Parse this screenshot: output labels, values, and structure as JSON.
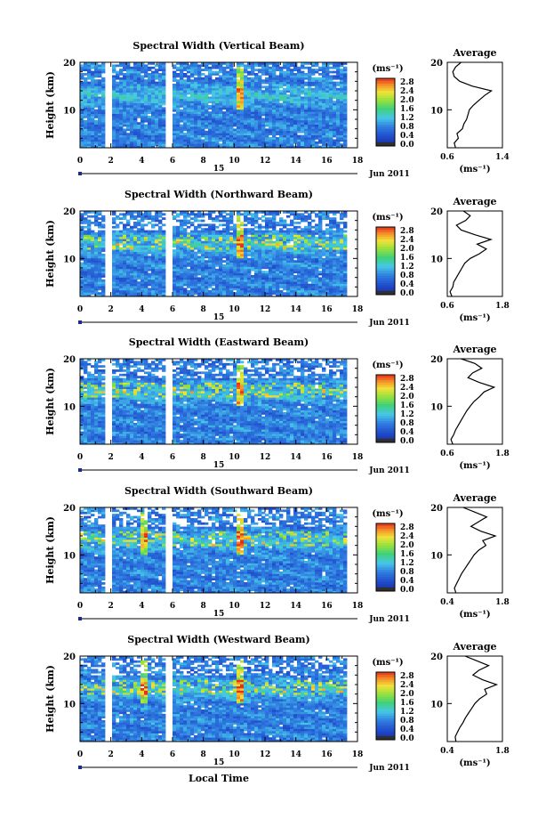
{
  "figure": {
    "date_label": "Jun 2011",
    "day_label": "15",
    "xlabel": "Local Time",
    "ylabel": "Height (km)",
    "unit_label": "(ms⁻¹)",
    "avg_title": "Average",
    "x_ticks": [
      "0",
      "2",
      "4",
      "6",
      "8",
      "10",
      "12",
      "14",
      "16",
      "18"
    ],
    "y_ticks": [
      "10",
      "20"
    ],
    "colorbar_ticks": [
      "0.0",
      "0.4",
      "0.8",
      "1.2",
      "1.6",
      "2.0",
      "2.4",
      "2.8"
    ],
    "colors": {
      "low": "#1a2b8f",
      "mid_low": "#2f7be0",
      "mid": "#46c8e8",
      "mid_high": "#3fd17a",
      "high": "#f1e23a",
      "top": "#e5321e"
    }
  },
  "chart_data": [
    {
      "type": "heatmap",
      "title": "Spectral Width (Vertical Beam)",
      "xlabel": "Local Time",
      "ylabel": "Height (km)",
      "xlim": [
        0,
        18
      ],
      "ylim": [
        2,
        20
      ],
      "data_gaps_hours": [
        [
          1.6,
          2.0
        ],
        [
          5.5,
          5.9
        ]
      ],
      "colorbar": {
        "unit": "(ms⁻¹)",
        "range": [
          0.0,
          2.8
        ]
      },
      "average_profile": {
        "title": "Average",
        "xlabel": "(ms⁻¹)",
        "xlim": [
          0.6,
          1.4
        ],
        "x_ticks": [
          "0.6",
          "1.4"
        ],
        "height_km": [
          2,
          3,
          4,
          5,
          6,
          7,
          8,
          9,
          10,
          11,
          12,
          13,
          14,
          15,
          16,
          17,
          18,
          19,
          20
        ],
        "value": [
          0.72,
          0.7,
          0.76,
          0.74,
          0.82,
          0.84,
          0.88,
          0.9,
          0.92,
          0.98,
          1.06,
          1.14,
          1.24,
          0.96,
          0.78,
          0.7,
          0.68,
          0.72,
          0.8
        ]
      }
    },
    {
      "type": "heatmap",
      "title": "Spectral Width (Northward Beam)",
      "xlabel": "Local Time",
      "ylabel": "Height (km)",
      "xlim": [
        0,
        18
      ],
      "ylim": [
        2,
        20
      ],
      "data_gaps_hours": [
        [
          1.6,
          2.0
        ],
        [
          5.5,
          5.9
        ]
      ],
      "colorbar": {
        "unit": "(ms⁻¹)",
        "range": [
          0.0,
          2.8
        ]
      },
      "average_profile": {
        "title": "Average",
        "xlabel": "(ms⁻¹)",
        "xlim": [
          0.6,
          1.8
        ],
        "x_ticks": [
          "0.6",
          "1.8"
        ],
        "height_km": [
          2,
          3,
          4,
          5,
          6,
          7,
          8,
          9,
          10,
          11,
          12,
          13,
          14,
          15,
          16,
          17,
          18,
          19,
          20
        ],
        "value": [
          0.7,
          0.66,
          0.72,
          0.74,
          0.8,
          0.86,
          0.92,
          0.98,
          1.1,
          1.3,
          1.45,
          1.25,
          1.55,
          1.2,
          0.9,
          0.8,
          1.0,
          1.1,
          0.95
        ]
      }
    },
    {
      "type": "heatmap",
      "title": "Spectral Width (Eastward Beam)",
      "xlabel": "Local Time",
      "ylabel": "Height (km)",
      "xlim": [
        0,
        18
      ],
      "ylim": [
        2,
        20
      ],
      "data_gaps_hours": [
        [
          1.6,
          2.0
        ],
        [
          5.5,
          5.9
        ]
      ],
      "colorbar": {
        "unit": "(ms⁻¹)",
        "range": [
          0.0,
          2.8
        ]
      },
      "average_profile": {
        "title": "Average",
        "xlabel": "(ms⁻¹)",
        "xlim": [
          0.6,
          1.8
        ],
        "x_ticks": [
          "0.6",
          "1.8"
        ],
        "height_km": [
          2,
          3,
          4,
          5,
          6,
          7,
          8,
          9,
          10,
          11,
          12,
          13,
          14,
          15,
          16,
          17,
          18,
          19,
          20
        ],
        "value": [
          0.72,
          0.68,
          0.74,
          0.78,
          0.84,
          0.9,
          0.96,
          1.02,
          1.1,
          1.18,
          1.3,
          1.4,
          1.62,
          1.3,
          1.05,
          1.15,
          1.35,
          1.2,
          0.9
        ]
      }
    },
    {
      "type": "heatmap",
      "title": "Spectral Width (Southward Beam)",
      "xlabel": "Local Time",
      "ylabel": "Height (km)",
      "xlim": [
        0,
        18
      ],
      "ylim": [
        2,
        20
      ],
      "data_gaps_hours": [
        [
          1.6,
          2.0
        ],
        [
          5.5,
          5.9
        ]
      ],
      "colorbar": {
        "unit": "(ms⁻¹)",
        "range": [
          0.0,
          2.8
        ]
      },
      "average_profile": {
        "title": "Average",
        "xlabel": "(ms⁻¹)",
        "xlim": [
          0.4,
          1.8
        ],
        "x_ticks": [
          "0.4",
          "1.8"
        ],
        "height_km": [
          2,
          3,
          4,
          5,
          6,
          7,
          8,
          9,
          10,
          11,
          12,
          13,
          14,
          15,
          16,
          17,
          18,
          19,
          20
        ],
        "value": [
          0.62,
          0.58,
          0.64,
          0.7,
          0.76,
          0.84,
          0.92,
          1.0,
          1.08,
          1.2,
          1.38,
          1.3,
          1.62,
          1.25,
          1.0,
          1.2,
          1.4,
          1.1,
          0.8
        ]
      }
    },
    {
      "type": "heatmap",
      "title": "Spectral Width (Westward Beam)",
      "xlabel": "Local Time",
      "ylabel": "Height (km)",
      "xlim": [
        0,
        18
      ],
      "ylim": [
        2,
        20
      ],
      "data_gaps_hours": [
        [
          1.6,
          2.0
        ],
        [
          5.5,
          5.9
        ]
      ],
      "colorbar": {
        "unit": "(ms⁻¹)",
        "range": [
          0.0,
          2.8
        ]
      },
      "average_profile": {
        "title": "Average",
        "xlabel": "(ms⁻¹)",
        "xlim": [
          0.4,
          1.8
        ],
        "x_ticks": [
          "0.4",
          "1.8"
        ],
        "height_km": [
          2,
          3,
          4,
          5,
          6,
          7,
          8,
          9,
          10,
          11,
          12,
          13,
          14,
          15,
          16,
          17,
          18,
          19,
          20
        ],
        "value": [
          0.62,
          0.6,
          0.66,
          0.72,
          0.8,
          0.86,
          0.94,
          1.02,
          1.1,
          1.22,
          1.4,
          1.35,
          1.65,
          1.3,
          1.05,
          1.2,
          1.45,
          1.15,
          0.85
        ]
      }
    }
  ]
}
